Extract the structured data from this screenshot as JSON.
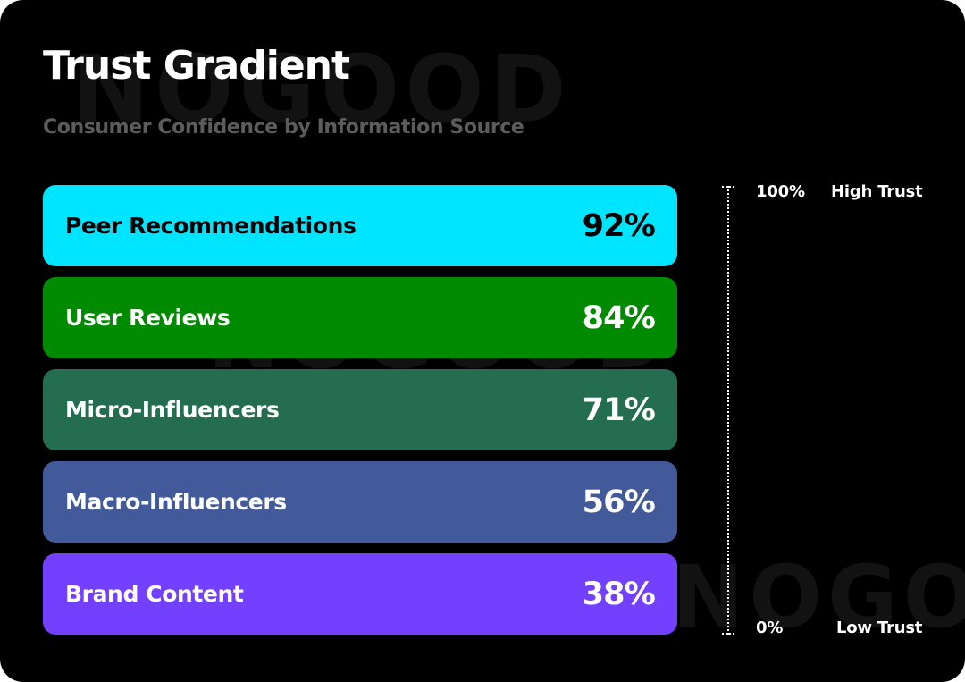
{
  "title": "Trust Gradient",
  "subtitle": "Consumer Confidence by Information Source",
  "watermark": "NOGOOD",
  "scale": {
    "top_value": "100%",
    "top_label": "High Trust",
    "bottom_value": "0%",
    "bottom_label": "Low Trust"
  },
  "chart_data": {
    "type": "bar",
    "title": "Trust Gradient",
    "subtitle": "Consumer Confidence by Information Source",
    "categories": [
      "Peer Recommendations",
      "User Reviews",
      "Micro-Influencers",
      "Macro-Influencers",
      "Brand Content"
    ],
    "values": [
      92,
      84,
      71,
      56,
      38
    ],
    "value_labels": [
      "92%",
      "84%",
      "71%",
      "56%",
      "38%"
    ],
    "colors": [
      "#00e5ff",
      "#008a00",
      "#256d50",
      "#435a9a",
      "#7340ff"
    ],
    "text_colors": [
      "#000000",
      "#ffffff",
      "#ffffff",
      "#ffffff",
      "#ffffff"
    ],
    "ylim": [
      0,
      100
    ],
    "grid": false,
    "legend": "none"
  }
}
